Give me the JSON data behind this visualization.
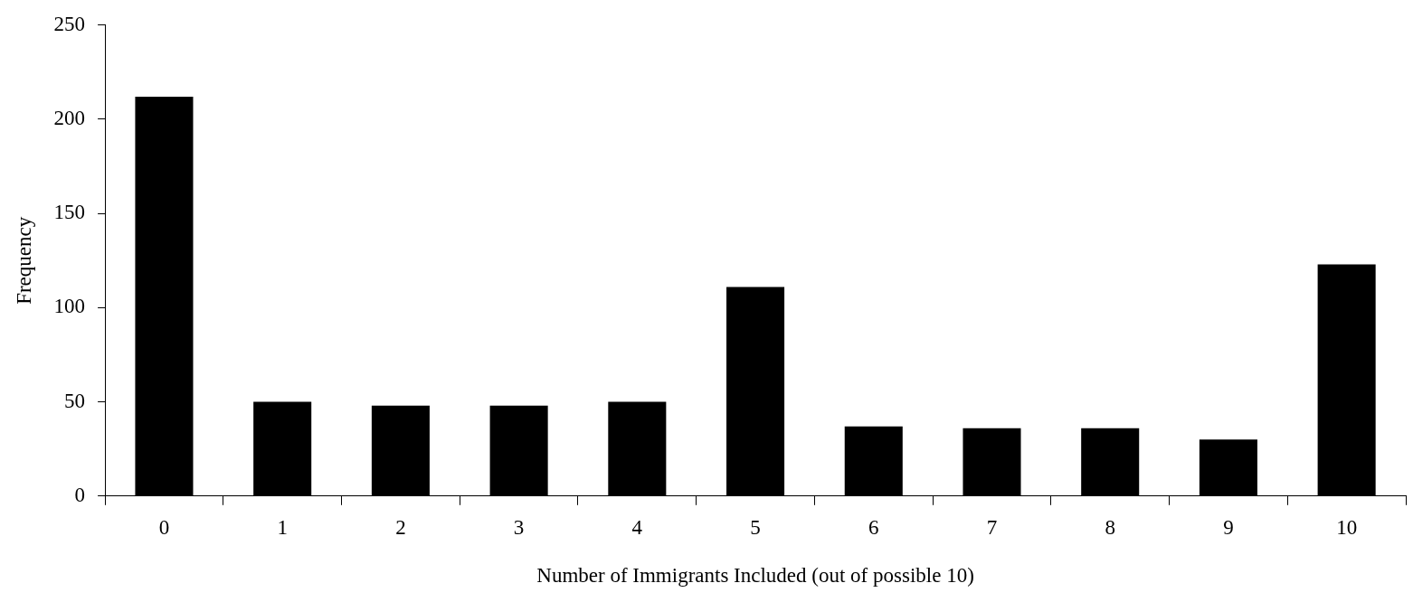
{
  "chart_data": {
    "type": "bar",
    "xlabel": "Number of Immigrants Included (out of possible 10)",
    "ylabel": "Frequency",
    "categories": [
      "0",
      "1",
      "2",
      "3",
      "4",
      "5",
      "6",
      "7",
      "8",
      "9",
      "10"
    ],
    "values": [
      212,
      50,
      48,
      48,
      50,
      111,
      37,
      36,
      36,
      30,
      123
    ],
    "color": "#000000",
    "ylim": [
      0,
      250
    ],
    "yticks": [
      0,
      50,
      100,
      150,
      200,
      250
    ],
    "grid": false,
    "legend": false
  }
}
